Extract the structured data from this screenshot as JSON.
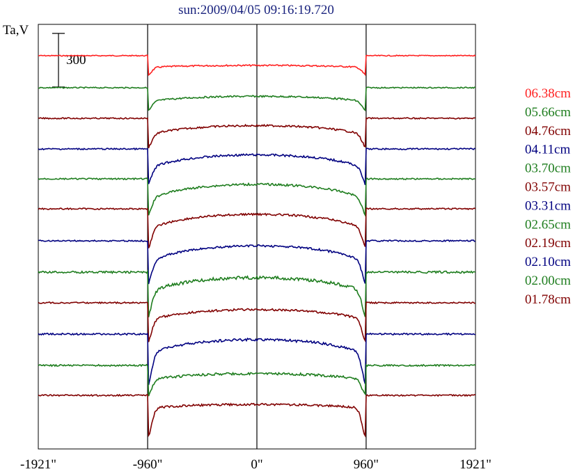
{
  "chart_data": {
    "type": "line",
    "title": "sun:2009/04/05 09:16:19.720",
    "ylabel": "Ta,V",
    "scale_bar_label": "300",
    "x_ticks": [
      "-1921\"",
      "-960\"",
      "0\"",
      "960\"",
      "1921\""
    ],
    "xlim": [
      -1921,
      1921
    ],
    "vertical_markers": [
      -960,
      0,
      960
    ],
    "grid": false,
    "legend_position": "right",
    "series": [
      {
        "name": "06.38cm",
        "color": "#ff2020",
        "baseline": 0,
        "depth": 0.08,
        "dip": 0.05,
        "noise": 0.7
      },
      {
        "name": "05.66cm",
        "color": "#1e7d1e",
        "baseline": -46,
        "depth": 0.2,
        "dip": 0.06,
        "noise": 0.8
      },
      {
        "name": "04.76cm",
        "color": "#800000",
        "baseline": -90,
        "depth": 0.35,
        "dip": 0.08,
        "noise": 0.9
      },
      {
        "name": "04.11cm",
        "color": "#000080",
        "baseline": -134,
        "depth": 0.5,
        "dip": 0.1,
        "noise": 1.0
      },
      {
        "name": "03.70cm",
        "color": "#1e7d1e",
        "baseline": -177,
        "depth": 0.55,
        "dip": 0.1,
        "noise": 1.0
      },
      {
        "name": "03.57cm",
        "color": "#800000",
        "baseline": -220,
        "depth": 0.55,
        "dip": 0.12,
        "noise": 1.0
      },
      {
        "name": "03.31cm",
        "color": "#000080",
        "baseline": -266,
        "depth": 0.6,
        "dip": 0.14,
        "noise": 1.0
      },
      {
        "name": "02.65cm",
        "color": "#1e7d1e",
        "baseline": -311,
        "depth": 0.55,
        "dip": 0.16,
        "noise": 1.5
      },
      {
        "name": "02.19cm",
        "color": "#800000",
        "baseline": -355,
        "depth": 0.4,
        "dip": 0.14,
        "noise": 1.0
      },
      {
        "name": "02.10cm",
        "color": "#000080",
        "baseline": -400,
        "depth": 0.55,
        "dip": 0.2,
        "noise": 1.2
      },
      {
        "name": "02.00cm",
        "color": "#1e7d1e",
        "baseline": -445,
        "depth": 0.25,
        "dip": 0.1,
        "noise": 1.2
      },
      {
        "name": "01.78cm",
        "color": "#800000",
        "baseline": -488,
        "depth": 0.15,
        "dip": 0.2,
        "noise": 1.0
      }
    ]
  }
}
